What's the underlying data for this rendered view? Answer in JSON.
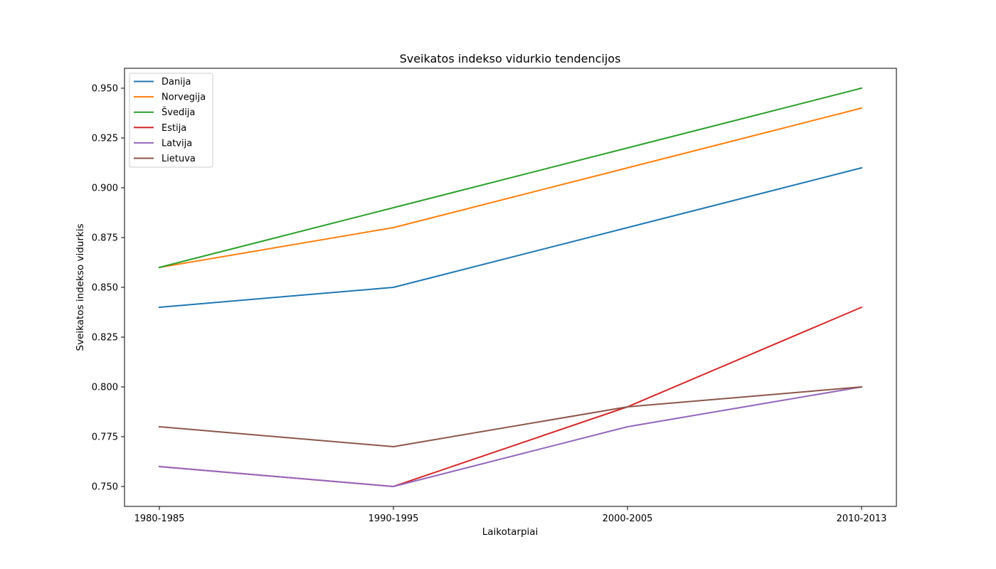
{
  "chart_data": {
    "type": "line",
    "title": "Sveikatos indekso vidurkio tendencijos",
    "xlabel": "Laikotarpiai",
    "ylabel": "Sveikatos indekso vidurkis",
    "categories": [
      "1980-1985",
      "1990-1995",
      "2000-2005",
      "2010-2013"
    ],
    "ylim": [
      0.745,
      0.955
    ],
    "yticks": [
      0.75,
      0.775,
      0.8,
      0.825,
      0.85,
      0.875,
      0.9,
      0.925,
      0.95
    ],
    "ytick_labels": [
      "0.750",
      "0.775",
      "0.800",
      "0.825",
      "0.850",
      "0.875",
      "0.900",
      "0.925",
      "0.950"
    ],
    "grid": false,
    "legend_position": "upper-left",
    "series": [
      {
        "name": "Danija",
        "color": "#1f77b4",
        "values": [
          0.84,
          0.85,
          0.88,
          0.91
        ]
      },
      {
        "name": "Norvegija",
        "color": "#ff7f0e",
        "values": [
          0.86,
          0.88,
          0.91,
          0.94
        ]
      },
      {
        "name": "Švedija",
        "color": "#2ca02c",
        "values": [
          0.86,
          0.89,
          0.92,
          0.95
        ]
      },
      {
        "name": "Estija",
        "color": "#d62728",
        "values": [
          0.76,
          0.75,
          0.79,
          0.84
        ]
      },
      {
        "name": "Latvija",
        "color": "#9467bd",
        "values": [
          0.76,
          0.75,
          0.78,
          0.8
        ]
      },
      {
        "name": "Lietuva",
        "color": "#8c564b",
        "values": [
          0.78,
          0.77,
          0.79,
          0.8
        ]
      }
    ]
  }
}
